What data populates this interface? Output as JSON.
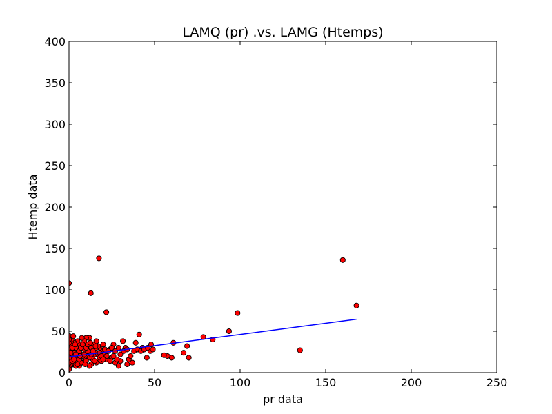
{
  "chart_data": {
    "type": "scatter",
    "title": "LAMQ (pr) .vs. LAMG (Htemps)",
    "xlabel": "pr data",
    "ylabel": "Htemp data",
    "xlim": [
      0,
      250
    ],
    "ylim": [
      0,
      400
    ],
    "xticks": [
      0,
      50,
      100,
      150,
      200,
      250
    ],
    "yticks": [
      0,
      50,
      100,
      150,
      200,
      250,
      300,
      350,
      400
    ],
    "grid": false,
    "legend": "none",
    "colors": {
      "points": "#ff0000",
      "point_edge": "#000000",
      "fit_line": "#0000ff"
    },
    "series": [
      {
        "values": [
          [
            0,
            108
          ],
          [
            17.5,
            138
          ],
          [
            12.8,
            96
          ],
          [
            21.8,
            73
          ],
          [
            160,
            136
          ],
          [
            168,
            81
          ],
          [
            98.5,
            72
          ],
          [
            93.5,
            50
          ],
          [
            135,
            27
          ],
          [
            78.5,
            43
          ],
          [
            84,
            40
          ],
          [
            61,
            36
          ],
          [
            70,
            18
          ],
          [
            69,
            32
          ],
          [
            67,
            24
          ],
          [
            60,
            18
          ],
          [
            57.5,
            20
          ],
          [
            55.5,
            21
          ],
          [
            41,
            46
          ],
          [
            31.5,
            38
          ],
          [
            48,
            34
          ],
          [
            47.5,
            26
          ],
          [
            45.5,
            18
          ],
          [
            43,
            30
          ],
          [
            39,
            36
          ],
          [
            37,
            12
          ],
          [
            35,
            16
          ],
          [
            34,
            10
          ],
          [
            33,
            30
          ],
          [
            30,
            14
          ],
          [
            29,
            8
          ],
          [
            27,
            12
          ],
          [
            26,
            34
          ],
          [
            25,
            18
          ],
          [
            24,
            28
          ],
          [
            22,
            16
          ],
          [
            20,
            34
          ],
          [
            19,
            26
          ],
          [
            18,
            30
          ],
          [
            17,
            14
          ],
          [
            16,
            38
          ],
          [
            15,
            22
          ],
          [
            14,
            34
          ],
          [
            13,
            10
          ],
          [
            12,
            42
          ],
          [
            11,
            26
          ],
          [
            10,
            42
          ],
          [
            9.5,
            16
          ],
          [
            9,
            38
          ],
          [
            8.5,
            30
          ],
          [
            8,
            12
          ],
          [
            7.5,
            42
          ],
          [
            7,
            22
          ],
          [
            6.5,
            34
          ],
          [
            6,
            8
          ],
          [
            5.5,
            28
          ],
          [
            5,
            38
          ],
          [
            4.5,
            14
          ],
          [
            4,
            30
          ],
          [
            3.5,
            20
          ],
          [
            3,
            36
          ],
          [
            2.5,
            10
          ],
          [
            2,
            26
          ],
          [
            1.5,
            40
          ],
          [
            1.2,
            16
          ],
          [
            1,
            32
          ],
          [
            0.8,
            8
          ],
          [
            0.5,
            22
          ],
          [
            0.3,
            44
          ],
          [
            0.2,
            12
          ],
          [
            0.1,
            36
          ],
          [
            0.1,
            18
          ],
          [
            0,
            28
          ],
          [
            0,
            6
          ],
          [
            0,
            40
          ],
          [
            0,
            4
          ],
          [
            2,
            14
          ],
          [
            3,
            24
          ],
          [
            4,
            8
          ],
          [
            5,
            18
          ],
          [
            6,
            26
          ],
          [
            7,
            12
          ],
          [
            8,
            20
          ],
          [
            9,
            28
          ],
          [
            10,
            14
          ],
          [
            11,
            20
          ],
          [
            12,
            8
          ],
          [
            13,
            30
          ],
          [
            14,
            16
          ],
          [
            15,
            26
          ],
          [
            16,
            12
          ],
          [
            17,
            22
          ],
          [
            18,
            18
          ],
          [
            19,
            14
          ],
          [
            20,
            22
          ],
          [
            21,
            28
          ],
          [
            22,
            20
          ],
          [
            23,
            26
          ],
          [
            24,
            14
          ],
          [
            25,
            30
          ],
          [
            26,
            20
          ],
          [
            27,
            26
          ],
          [
            28,
            16
          ],
          [
            29,
            30
          ],
          [
            30,
            22
          ],
          [
            32,
            26
          ],
          [
            34,
            28
          ],
          [
            36,
            20
          ],
          [
            38,
            26
          ],
          [
            40,
            28
          ],
          [
            42,
            26
          ],
          [
            44,
            28
          ],
          [
            46,
            30
          ],
          [
            49,
            28
          ],
          [
            1,
            24
          ],
          [
            2,
            30
          ],
          [
            3,
            16
          ],
          [
            4,
            22
          ],
          [
            5,
            10
          ],
          [
            6,
            16
          ],
          [
            7,
            30
          ],
          [
            8,
            34
          ],
          [
            9,
            22
          ],
          [
            10,
            30
          ],
          [
            11,
            34
          ],
          [
            12,
            18
          ],
          [
            13,
            22
          ],
          [
            14,
            26
          ],
          [
            15,
            14
          ],
          [
            16,
            30
          ],
          [
            17,
            32
          ],
          [
            18,
            24
          ],
          [
            19,
            20
          ],
          [
            20,
            16
          ],
          [
            3.5,
            34
          ],
          [
            6.5,
            20
          ],
          [
            9.5,
            10
          ],
          [
            12.5,
            36
          ],
          [
            15.5,
            32
          ],
          [
            2.5,
            44
          ]
        ]
      }
    ],
    "fit_line": {
      "x": [
        0,
        168
      ],
      "y": [
        19,
        64.5
      ]
    }
  }
}
